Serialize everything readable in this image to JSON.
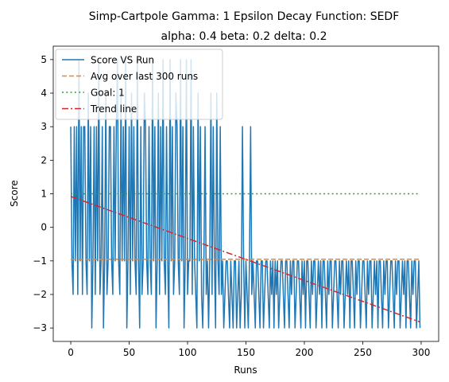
{
  "chart_data": {
    "type": "line",
    "title": "Simp-Cartpole Gamma: 1 Epsilon Decay Function: SEDF",
    "subtitle": "alpha: 0.4  beta: 0.2  delta: 0.2",
    "xlabel": "Runs",
    "ylabel": "Score",
    "xlim": [
      -15,
      315
    ],
    "ylim": [
      -3.4,
      5.4
    ],
    "xticks": [
      0,
      50,
      100,
      150,
      200,
      250,
      300
    ],
    "yticks": [
      -3,
      -2,
      -1,
      0,
      1,
      2,
      3,
      4,
      5
    ],
    "grid": false,
    "legend_position": "top-left",
    "series": [
      {
        "name": "Score VS Run",
        "color": "#1f77b4",
        "style": "solid",
        "x": [
          0,
          1,
          2,
          3,
          4,
          5,
          6,
          7,
          8,
          9,
          10,
          11,
          12,
          13,
          14,
          15,
          16,
          17,
          18,
          19,
          20,
          21,
          22,
          23,
          24,
          25,
          26,
          27,
          28,
          29,
          30,
          31,
          32,
          33,
          34,
          35,
          36,
          37,
          38,
          39,
          40,
          41,
          42,
          43,
          44,
          45,
          46,
          47,
          48,
          49,
          50,
          51,
          52,
          53,
          54,
          55,
          56,
          57,
          58,
          59,
          60,
          61,
          62,
          63,
          64,
          65,
          66,
          67,
          68,
          69,
          70,
          71,
          72,
          73,
          74,
          75,
          76,
          77,
          78,
          79,
          80,
          81,
          82,
          83,
          84,
          85,
          86,
          87,
          88,
          89,
          90,
          91,
          92,
          93,
          94,
          95,
          96,
          97,
          98,
          99,
          100,
          101,
          102,
          103,
          104,
          105,
          106,
          107,
          108,
          109,
          110,
          111,
          112,
          113,
          114,
          115,
          116,
          117,
          118,
          119,
          120,
          121,
          122,
          123,
          124,
          125,
          126,
          127,
          128,
          129,
          130,
          131,
          132,
          133,
          134,
          135,
          136,
          137,
          138,
          139,
          140,
          141,
          142,
          143,
          144,
          145,
          146,
          147,
          148,
          149,
          150,
          151,
          152,
          153,
          154,
          155,
          156,
          157,
          158,
          159,
          160,
          161,
          162,
          163,
          164,
          165,
          166,
          167,
          168,
          169,
          170,
          171,
          172,
          173,
          174,
          175,
          176,
          177,
          178,
          179,
          180,
          181,
          182,
          183,
          184,
          185,
          186,
          187,
          188,
          189,
          190,
          191,
          192,
          193,
          194,
          195,
          196,
          197,
          198,
          199,
          200,
          201,
          202,
          203,
          204,
          205,
          206,
          207,
          208,
          209,
          210,
          211,
          212,
          213,
          214,
          215,
          216,
          217,
          218,
          219,
          220,
          221,
          222,
          223,
          224,
          225,
          226,
          227,
          228,
          229,
          230,
          231,
          232,
          233,
          234,
          235,
          236,
          237,
          238,
          239,
          240,
          241,
          242,
          243,
          244,
          245,
          246,
          247,
          248,
          249,
          250,
          251,
          252,
          253,
          254,
          255,
          256,
          257,
          258,
          259,
          260,
          261,
          262,
          263,
          264,
          265,
          266,
          267,
          268,
          269,
          270,
          271,
          272,
          273,
          274,
          275,
          276,
          277,
          278,
          279,
          280,
          281,
          282,
          283,
          284,
          285,
          286,
          287,
          288,
          289,
          290,
          291,
          292,
          293,
          294,
          295,
          296,
          297,
          298,
          299
        ],
        "values": [
          3,
          -1,
          -2,
          3,
          -1,
          3,
          -2,
          5,
          -1,
          3,
          -2,
          3,
          3,
          -1,
          -2,
          4,
          -1,
          3,
          -3,
          -1,
          3,
          -2,
          3,
          -1,
          5,
          -2,
          -1,
          3,
          -3,
          -1,
          4,
          -2,
          -1,
          3,
          3,
          -1,
          -2,
          3,
          -1,
          3,
          5,
          -1,
          -2,
          4,
          -1,
          3,
          -1,
          5,
          -3,
          -1,
          3,
          -2,
          4,
          -1,
          3,
          -1,
          -2,
          5,
          -1,
          -3,
          3,
          -2,
          -1,
          4,
          3,
          -1,
          -2,
          3,
          -1,
          -2,
          5,
          -1,
          3,
          -3,
          -1,
          4,
          -2,
          3,
          -1,
          5,
          -1,
          -2,
          3,
          -1,
          -3,
          5,
          -1,
          3,
          -2,
          -1,
          4,
          3,
          -1,
          -2,
          5,
          -1,
          3,
          -3,
          -1,
          5,
          -2,
          -1,
          -1,
          5,
          -2,
          3,
          -1,
          -2,
          -3,
          4,
          -1,
          3,
          -2,
          -3,
          -1,
          3,
          -2,
          -1,
          -3,
          -1,
          4,
          -2,
          3,
          -1,
          -3,
          4,
          -1,
          -2,
          3,
          -2,
          -1,
          -3,
          -2,
          -1,
          -1,
          -2,
          -3,
          -1,
          -2,
          -3,
          -1,
          -1,
          -3,
          -2,
          -1,
          -3,
          -2,
          3,
          -1,
          -3,
          -1,
          -2,
          -3,
          -1,
          3,
          -2,
          -1,
          -2,
          -3,
          -1,
          -1,
          -2,
          -3,
          -1,
          -1,
          -3,
          -2,
          -1,
          -1,
          -2,
          -3,
          -1,
          -2,
          -1,
          -3,
          -1,
          -2,
          -1,
          -3,
          -2,
          -1,
          -1,
          -2,
          -3,
          -1,
          -1,
          -2,
          -3,
          -1,
          -2,
          -1,
          -1,
          -3,
          -2,
          -1,
          -1,
          -2,
          -3,
          -1,
          -2,
          -1,
          -3,
          -1,
          -1,
          -2,
          -3,
          -1,
          -2,
          -1,
          -1,
          -3,
          -2,
          -1,
          -2,
          -1,
          -3,
          -1,
          -1,
          -2,
          -3,
          -1,
          -2,
          -1,
          -1,
          -3,
          -2,
          -1,
          -1,
          -2,
          -3,
          -1,
          -2,
          -1,
          -1,
          -3,
          -2,
          -1,
          -2,
          -1,
          -3,
          -1,
          -1,
          -2,
          -3,
          -1,
          -2,
          -1,
          -1,
          -3,
          -2,
          -1,
          -1,
          -2,
          -3,
          -1,
          -2,
          -1,
          -1,
          -3,
          -2,
          -1,
          -2,
          -1,
          -3,
          -1,
          -1,
          -2,
          -3,
          -1,
          -2,
          -1,
          -1,
          -3,
          -2,
          -1,
          -1,
          -2,
          -3,
          -1,
          -2,
          -1,
          -1,
          -3,
          -2,
          -1,
          -2,
          -1,
          -3,
          -1,
          -1,
          -2,
          -3,
          -1,
          -2,
          -1,
          -1,
          -3,
          -2,
          -1,
          -3
        ]
      },
      {
        "name": "Avg over last 300 runs",
        "color": "#ff7f0e",
        "style": "dashed",
        "x": [
          0,
          299
        ],
        "values": [
          -0.95,
          -0.95
        ]
      },
      {
        "name": "Goal: 1",
        "color": "#2ca02c",
        "style": "dotted",
        "x": [
          0,
          299
        ],
        "values": [
          1,
          1
        ]
      },
      {
        "name": "Trend line",
        "color": "#d62728",
        "style": "dashdot",
        "x": [
          0,
          299
        ],
        "values": [
          0.92,
          -2.82
        ]
      }
    ]
  }
}
